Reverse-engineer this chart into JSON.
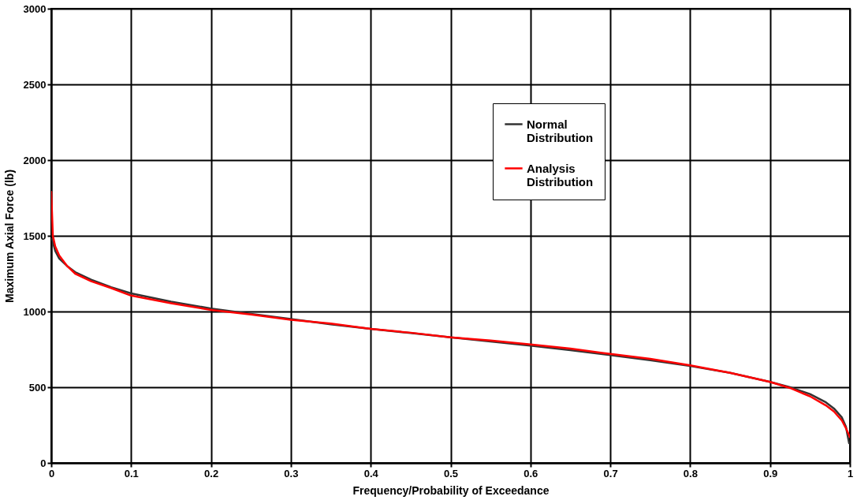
{
  "chart_data": {
    "type": "line",
    "xlabel": "Frequency/Probability of Exceedance",
    "ylabel": "Maximum Axial Force (lb)",
    "xlim": [
      0,
      1
    ],
    "ylim": [
      0,
      3000
    ],
    "xticks": [
      0,
      0.1,
      0.2,
      0.3,
      0.4,
      0.5,
      0.6,
      0.7,
      0.8,
      0.9,
      1
    ],
    "yticks": [
      0,
      500,
      1000,
      1500,
      2000,
      2500,
      3000
    ],
    "grid": true,
    "legend": "top right",
    "marker": "none",
    "line_style": "solid",
    "series": [
      {
        "name": "Normal Distribution",
        "color": "#333333",
        "x": [
          0.001,
          0.005,
          0.01,
          0.02,
          0.03,
          0.05,
          0.075,
          0.1,
          0.15,
          0.2,
          0.25,
          0.3,
          0.35,
          0.4,
          0.45,
          0.5,
          0.55,
          0.6,
          0.65,
          0.7,
          0.75,
          0.8,
          0.85,
          0.9,
          0.925,
          0.95,
          0.97,
          0.98,
          0.99,
          0.995,
          0.999
        ],
        "values": [
          1480,
          1400,
          1350,
          1300,
          1260,
          1210,
          1160,
          1120,
          1065,
          1020,
          985,
          950,
          915,
          885,
          858,
          830,
          802,
          775,
          745,
          712,
          678,
          640,
          595,
          535,
          500,
          455,
          400,
          360,
          300,
          240,
          130
        ]
      },
      {
        "name": "Analysis Distribution",
        "color": "#ff0000",
        "x": [
          0,
          0.002,
          0.005,
          0.01,
          0.02,
          0.03,
          0.05,
          0.075,
          0.1,
          0.15,
          0.2,
          0.25,
          0.3,
          0.35,
          0.4,
          0.45,
          0.5,
          0.55,
          0.6,
          0.65,
          0.7,
          0.75,
          0.8,
          0.85,
          0.9,
          0.925,
          0.95,
          0.97,
          0.98,
          0.99,
          0.995,
          1
        ],
        "values": [
          1790,
          1500,
          1430,
          1370,
          1300,
          1250,
          1200,
          1155,
          1105,
          1055,
          1010,
          980,
          945,
          920,
          885,
          860,
          830,
          808,
          782,
          755,
          720,
          688,
          645,
          595,
          535,
          495,
          440,
          380,
          340,
          280,
          230,
          170
        ]
      }
    ]
  }
}
